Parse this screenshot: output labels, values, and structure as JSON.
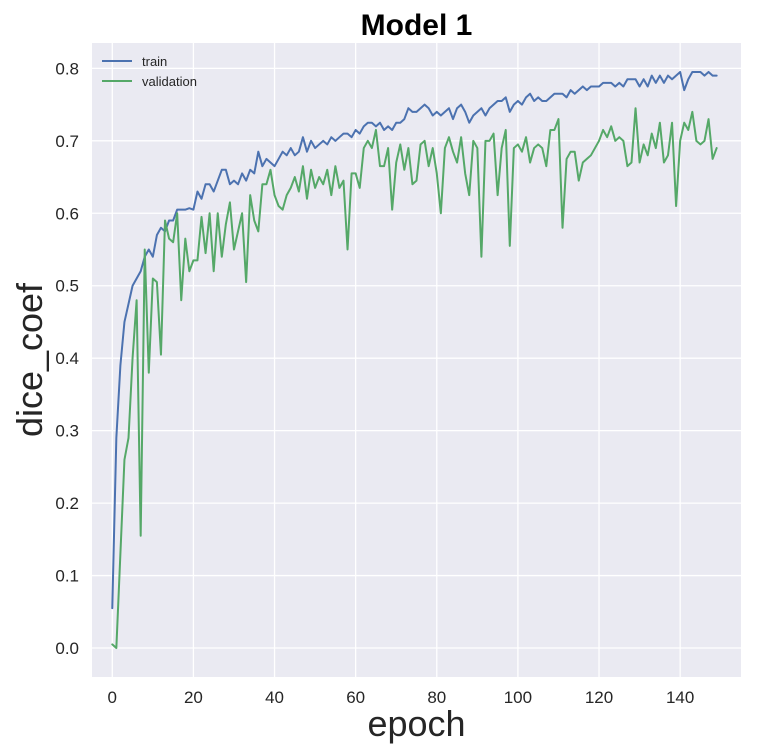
{
  "chart_data": {
    "type": "line",
    "title": "Model 1",
    "xlabel": "epoch",
    "ylabel": "dice_coef",
    "xlim": [
      -5,
      155
    ],
    "ylim": [
      -0.04,
      0.835
    ],
    "xticks": [
      0,
      20,
      40,
      60,
      80,
      100,
      120,
      140
    ],
    "yticks": [
      0.0,
      0.1,
      0.2,
      0.3,
      0.4,
      0.5,
      0.6,
      0.7,
      0.8
    ],
    "grid": true,
    "legend_position": "top-left",
    "background_color": "#eaeaf2",
    "series": [
      {
        "name": "train",
        "color": "#4c72b0",
        "values": [
          0.055,
          0.29,
          0.39,
          0.45,
          0.475,
          0.5,
          0.51,
          0.52,
          0.54,
          0.55,
          0.54,
          0.57,
          0.58,
          0.575,
          0.59,
          0.59,
          0.605,
          0.605,
          0.605,
          0.607,
          0.605,
          0.61,
          0.63,
          0.62,
          0.64,
          0.63,
          0.645,
          0.645,
          0.66,
          0.64,
          0.645,
          0.64,
          0.655,
          0.645,
          0.66,
          0.655,
          0.68,
          0.665,
          0.675,
          0.67,
          0.665,
          0.675,
          0.685,
          0.68,
          0.69,
          0.68,
          0.685,
          0.695,
          0.685,
          0.7,
          0.69,
          0.695,
          0.7,
          0.695,
          0.705,
          0.7,
          0.705,
          0.71,
          0.71,
          0.705,
          0.715,
          0.71,
          0.72,
          0.72,
          0.725,
          0.72,
          0.725,
          0.715,
          0.72,
          0.715,
          0.725,
          0.725,
          0.73,
          0.735,
          0.74,
          0.74,
          0.745,
          0.74,
          0.745,
          0.735,
          0.74,
          0.735,
          0.74,
          0.745,
          0.735,
          0.745,
          0.73,
          0.74,
          0.745,
          0.735,
          0.74,
          0.745,
          0.735,
          0.745,
          0.75,
          0.74,
          0.755,
          0.745,
          0.755,
          0.75,
          0.755,
          0.75,
          0.76,
          0.755,
          0.755,
          0.76,
          0.755,
          0.76,
          0.76,
          0.765,
          0.76,
          0.765,
          0.76,
          0.77,
          0.765,
          0.77,
          0.775,
          0.77,
          0.775,
          0.775,
          0.775,
          0.78,
          0.775,
          0.78,
          0.775,
          0.78,
          0.775,
          0.785,
          0.78,
          0.785,
          0.78,
          0.785,
          0.775,
          0.785,
          0.78,
          0.79,
          0.78,
          0.79,
          0.785,
          0.79,
          0.785,
          0.79,
          0.785,
          0.795,
          0.79,
          0.795,
          0.79,
          0.795,
          0.79,
          0.79
        ],
        "overrides": [
          [
            20,
            0.605
          ],
          [
            21,
            0.63
          ],
          [
            22,
            0.62
          ],
          [
            23,
            0.64
          ],
          [
            27,
            0.66
          ],
          [
            36,
            0.685
          ],
          [
            47,
            0.705
          ],
          [
            58,
            0.71
          ],
          [
            63,
            0.725
          ],
          [
            73,
            0.745
          ],
          [
            77,
            0.75
          ],
          [
            82,
            0.74
          ],
          [
            84,
            0.73
          ],
          [
            86,
            0.75
          ],
          [
            88,
            0.725
          ],
          [
            92,
            0.735
          ],
          [
            95,
            0.755
          ],
          [
            97,
            0.76
          ],
          [
            98,
            0.74
          ],
          [
            103,
            0.765
          ],
          [
            107,
            0.755
          ],
          [
            110,
            0.765
          ],
          [
            122,
            0.78
          ],
          [
            128,
            0.785
          ],
          [
            130,
            0.775
          ],
          [
            133,
            0.79
          ],
          [
            140,
            0.795
          ],
          [
            141,
            0.77
          ],
          [
            143,
            0.795
          ],
          [
            144,
            0.795
          ],
          [
            146,
            0.79
          ],
          [
            149,
            0.79
          ]
        ]
      },
      {
        "name": "validation",
        "color": "#55a868",
        "values": [
          0.005,
          0.0,
          0.13,
          0.26,
          0.29,
          0.4,
          0.48,
          0.155,
          0.55,
          0.38,
          0.51,
          0.505,
          0.405,
          0.59,
          0.565,
          0.56,
          0.6,
          0.48,
          0.565,
          0.52,
          0.535,
          0.535,
          0.595,
          0.545,
          0.6,
          0.52,
          0.6,
          0.54,
          0.585,
          0.615,
          0.55,
          0.575,
          0.6,
          0.505,
          0.625,
          0.59,
          0.575,
          0.64,
          0.64,
          0.66,
          0.625,
          0.61,
          0.605,
          0.625,
          0.635,
          0.65,
          0.63,
          0.665,
          0.62,
          0.66,
          0.635,
          0.65,
          0.64,
          0.66,
          0.625,
          0.665,
          0.635,
          0.645,
          0.55,
          0.655,
          0.655,
          0.635,
          0.69,
          0.7,
          0.69,
          0.715,
          0.665,
          0.665,
          0.69,
          0.605,
          0.67,
          0.695,
          0.66,
          0.69,
          0.64,
          0.645,
          0.695,
          0.7,
          0.665,
          0.69,
          0.655,
          0.6,
          0.69,
          0.705,
          0.685,
          0.67,
          0.705,
          0.655,
          0.625,
          0.7,
          0.69,
          0.54,
          0.7,
          0.7,
          0.71,
          0.625,
          0.69,
          0.715,
          0.555,
          0.69,
          0.695,
          0.685,
          0.705,
          0.67,
          0.69,
          0.695,
          0.69,
          0.665,
          0.715,
          0.715,
          0.73,
          0.58,
          0.675,
          0.685,
          0.685,
          0.645,
          0.67,
          0.675,
          0.68,
          0.69,
          0.7,
          0.715,
          0.705,
          0.72,
          0.7,
          0.705,
          0.7,
          0.665,
          0.67,
          0.745,
          0.67,
          0.695,
          0.68,
          0.71,
          0.69,
          0.725,
          0.67,
          0.68,
          0.725,
          0.61,
          0.7,
          0.725,
          0.715,
          0.74,
          0.7,
          0.695,
          0.7,
          0.73,
          0.675,
          0.69
        ],
        "overrides": []
      }
    ]
  }
}
